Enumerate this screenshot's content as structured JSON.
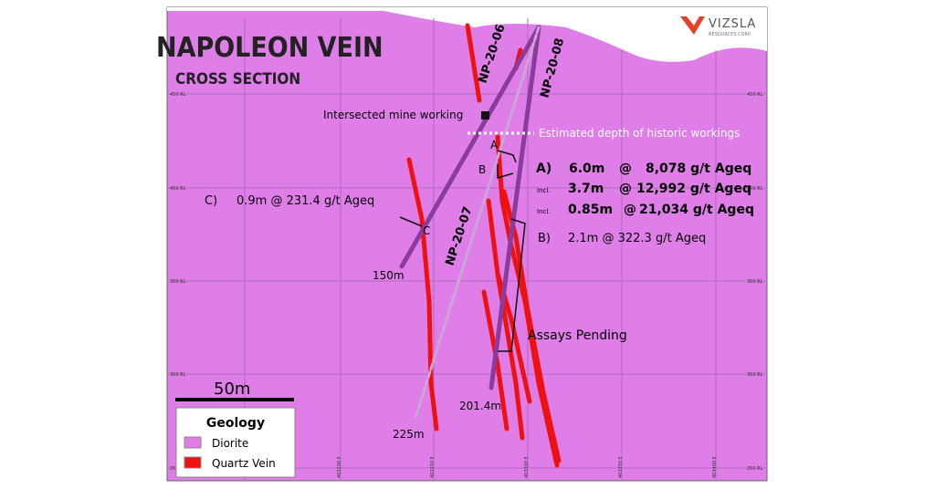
{
  "header": {
    "title": "NAPOLEON VEIN",
    "subtitle": "CROSS SECTION"
  },
  "logo": {
    "name": "VIZSLA",
    "tagline": "RESOURCES CORP."
  },
  "elevation_labels": [
    "450 RL",
    "400 RL",
    "350 RL",
    "300 RL",
    "250 RL"
  ],
  "easting_labels": [
    "403200 E",
    "403250 E",
    "403300 E",
    "403350 E",
    "403400 E"
  ],
  "drill_holes": [
    {
      "name": "NP-20-06",
      "depth": "150m"
    },
    {
      "name": "NP-20-08",
      "depth": "201.4m"
    },
    {
      "name": "NP-20-07",
      "depth": "225m"
    }
  ],
  "annotations": {
    "mine_working": "Intersected mine working",
    "historic_depth": "Estimated depth of historic workings",
    "assays": "Assays Pending",
    "zones": [
      "A",
      "B",
      "C"
    ]
  },
  "intercepts": [
    {
      "label": "A)",
      "length": "6.0m",
      "at": "@",
      "grade": "8,078 g/t Ageq"
    },
    {
      "label": "Incl.",
      "length": "3.7m",
      "at": "@",
      "grade": "12,992 g/t Ageq"
    },
    {
      "label": "Incl.",
      "length": "0.85m",
      "at": "@",
      "grade": "21,034 g/t Ageq"
    },
    {
      "label": "B)",
      "text": "2.1m @ 322.3 g/t Ageq"
    },
    {
      "label": "C)",
      "text": "0.9m @ 231.4 g/t Ageq"
    }
  ],
  "scale_bar": "50m",
  "legend": {
    "title": "Geology",
    "items": [
      "Diorite",
      "Quartz Vein"
    ]
  }
}
